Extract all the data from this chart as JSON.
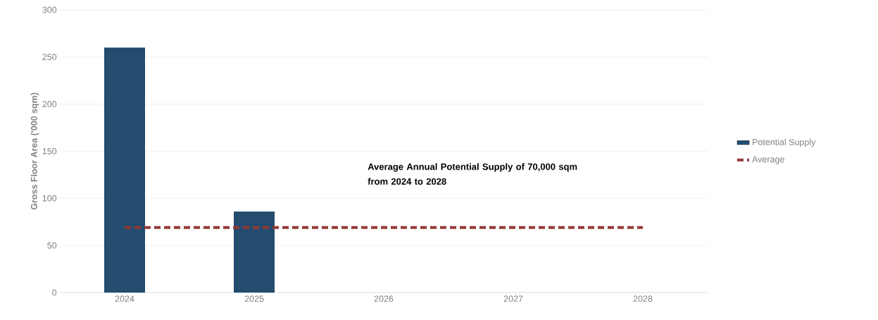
{
  "chart_data": {
    "type": "bar",
    "ylabel": "Gross Floor Area ('000 sqm)",
    "categories": [
      "2024",
      "2025",
      "2026",
      "2027",
      "2028"
    ],
    "series": [
      {
        "name": "Potential Supply",
        "type": "bar",
        "color": "#234c6e",
        "values": [
          260,
          86,
          null,
          null,
          null
        ]
      },
      {
        "name": "Average",
        "type": "line",
        "color": "#943734",
        "line_style": "dashed",
        "values": [
          69,
          69,
          69,
          69,
          69
        ]
      }
    ],
    "ylim": [
      0,
      300
    ],
    "yticks": [
      0,
      50,
      100,
      150,
      200,
      250,
      300
    ],
    "grid": "y",
    "legend": "right",
    "annotations": [
      "**Average Annual Potential Supply of 70,000 sqm from 2024 to 2028**"
    ]
  }
}
